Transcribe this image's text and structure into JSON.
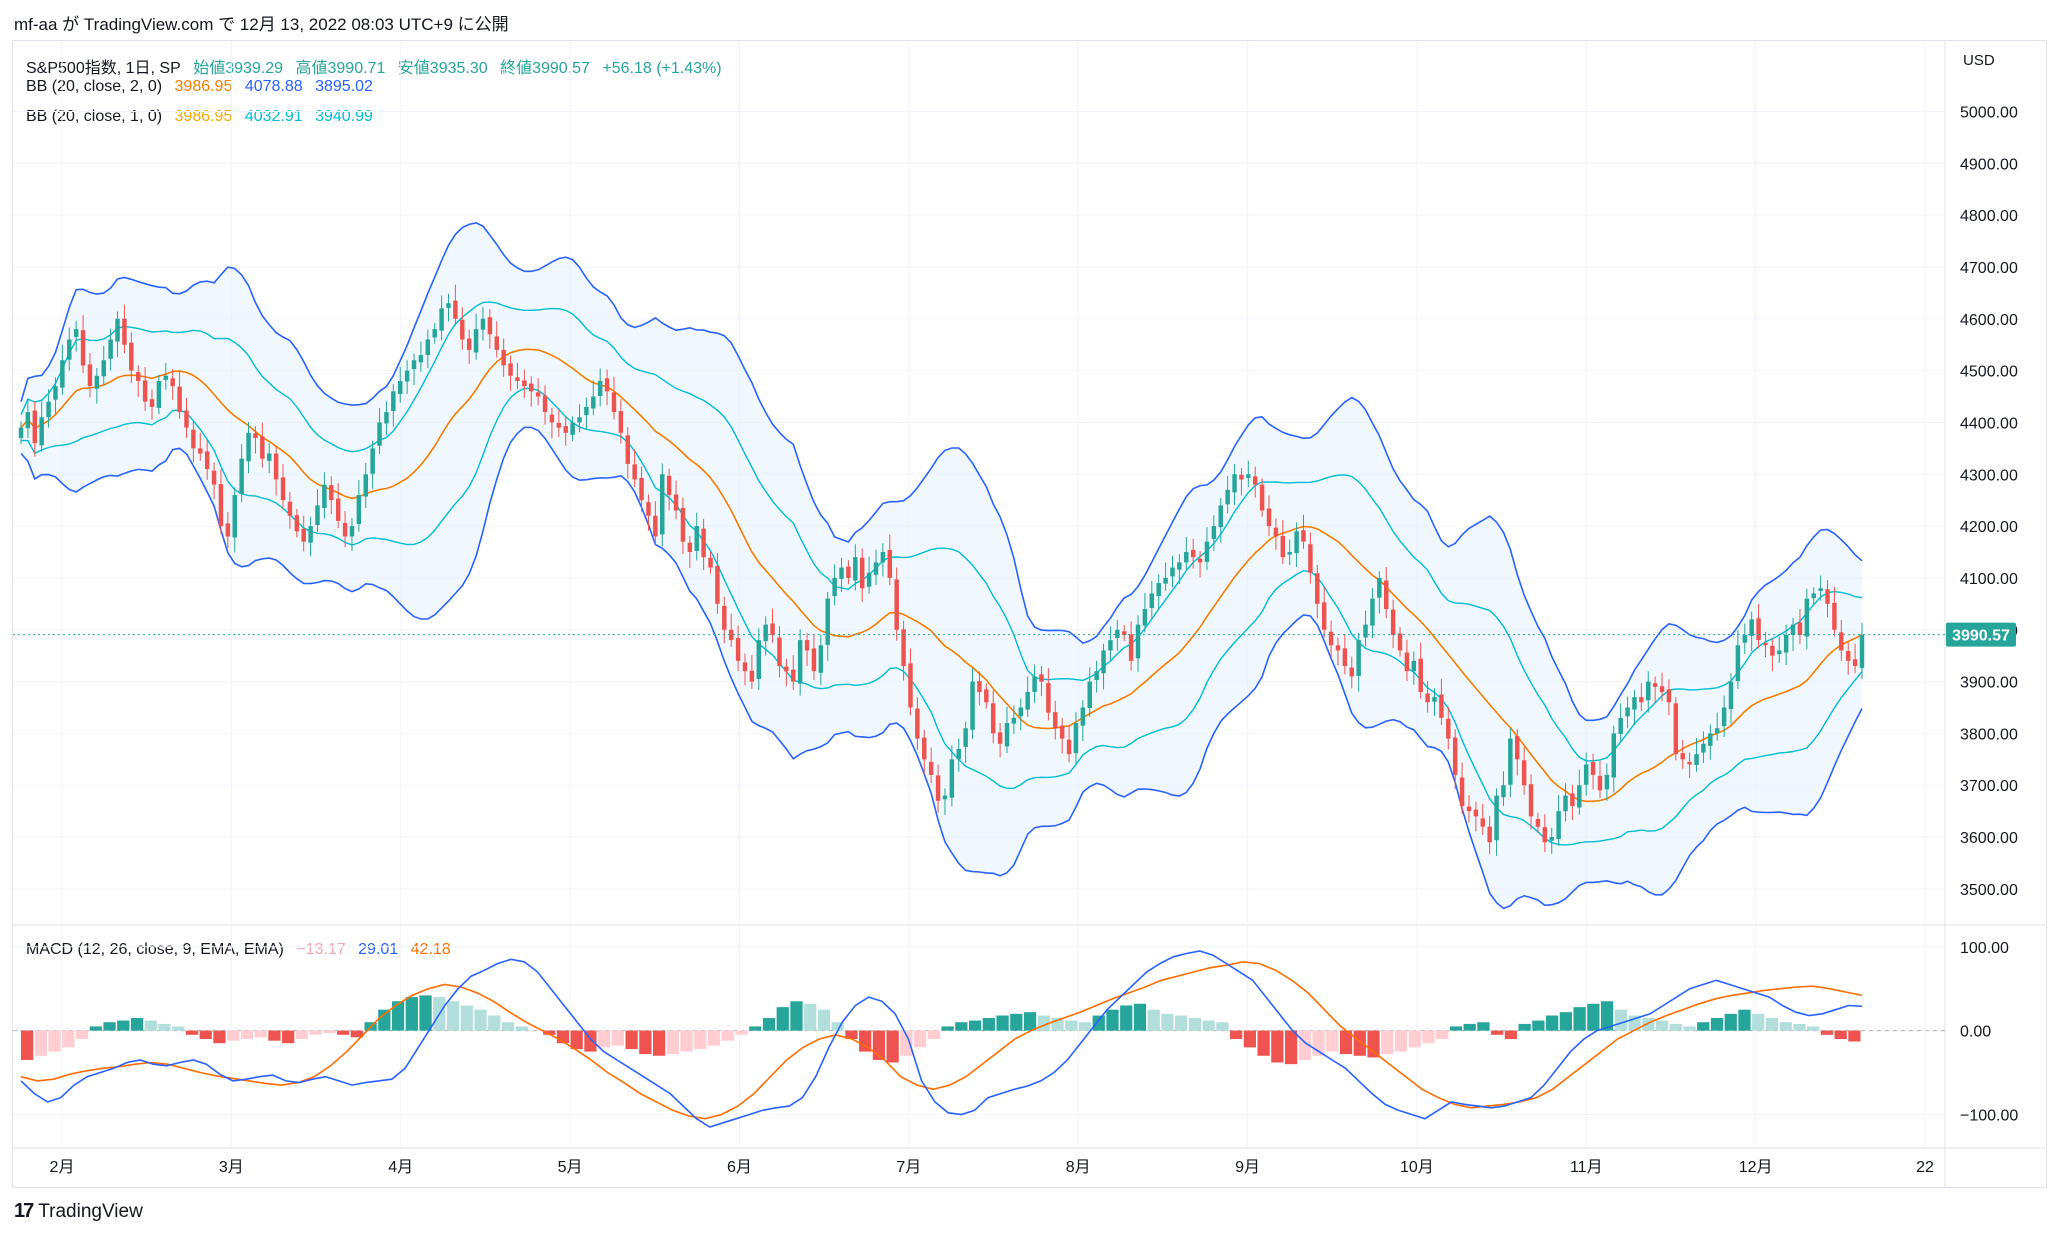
{
  "header": {
    "author": "mf-aa",
    "text": "mf-aa が TradingView.com で 12月 13, 2022 08:03 UTC+9 に公開"
  },
  "legend": {
    "symbol": "S&P500指数, 1日, SP",
    "open": "始値3939.29",
    "high": "高値3990.71",
    "low": "安値3935.30",
    "close": "終値3990.57",
    "change": "+56.18 (+1.43%)",
    "bb1": {
      "label": "BB (20, close, 2, 0)",
      "basis": "3986.95",
      "upper": "4078.88",
      "lower": "3895.02"
    },
    "bb2": {
      "label": "BB (20, close, 1, 0)",
      "basis": "3986.95",
      "upper": "4032.91",
      "lower": "3940.99"
    },
    "macd": {
      "label": "MACD (12, 26, close, 9, EMA, EMA)",
      "hist": "−13.17",
      "macd": "29.01",
      "signal": "42.18"
    }
  },
  "currency_label": "USD",
  "last_price_label": "3990.57",
  "footer": {
    "logo_text": "TradingView",
    "logo_mark": "17"
  },
  "colors": {
    "up": "#26a69a",
    "down": "#ef5350",
    "bb_outer": "#2962ff",
    "bb_inner": "#00bcd4",
    "bb_basis": "#f57c00",
    "band_fill": "#e3f2fd",
    "macd_line": "#2962ff",
    "signal_line": "#ff6d00",
    "hist_up_strong": "#26a69a",
    "hist_up_weak": "#b2dfdb",
    "hist_down_strong": "#ef5350",
    "hist_down_weak": "#ffcdd2"
  },
  "chart_data": [
    {
      "type": "candlestick",
      "price_axis": {
        "ticks": [
          3500,
          3600,
          3700,
          3800,
          3900,
          4000,
          4100,
          4200,
          4300,
          4400,
          4500,
          4600,
          4700,
          4800,
          4900,
          5000
        ],
        "tick_labels": [
          "3500.00",
          "3600.00",
          "3700.00",
          "3800.00",
          "3900.00",
          "4000.00",
          "4100.00",
          "4200.00",
          "4300.00",
          "4400.00",
          "4500.00",
          "4600.00",
          "4700.00",
          "4800.00",
          "4900.00",
          "5000.00"
        ],
        "ylim": [
          3440,
          5080
        ]
      },
      "time_axis": {
        "labels": [
          "2月",
          "3月",
          "4月",
          "5月",
          "6月",
          "7月",
          "8月",
          "9月",
          "10月",
          "11月",
          "12月",
          "22"
        ]
      },
      "close_path": [
        [
          4390,
          4420,
          4360,
          4410,
          4440,
          4470,
          4520,
          4560,
          4580,
          4510,
          4470,
          4490,
          4520,
          4560,
          4600,
          4550,
          4500,
          4480,
          4440,
          4430,
          4480,
          4490,
          4470,
          4420,
          4390,
          4350,
          4340,
          4310,
          4280,
          4200,
          4180,
          4260,
          4330,
          4380,
          4370,
          4330,
          4340,
          4290,
          4250,
          4220,
          4190,
          4170,
          4200,
          4240,
          4280,
          4250,
          4210,
          4180,
          4200,
          4260,
          4300,
          4350,
          4400,
          4420,
          4460,
          4480,
          4500,
          4520,
          4530,
          4560,
          4580,
          4620,
          4630,
          4600,
          4560,
          4540,
          4580,
          4600,
          4570,
          4540,
          4510,
          4490,
          4480,
          4470,
          4460,
          4450,
          4420,
          4400,
          4390,
          4380,
          4400,
          4410,
          4430,
          4450,
          4480,
          4460,
          4420,
          4380,
          4320,
          4290,
          4250,
          4220,
          4180,
          4300,
          4260,
          4230,
          4170,
          4150,
          4200,
          4140,
          4120,
          4050,
          4000,
          3980,
          3940,
          3920,
          3900,
          3980,
          4010,
          3990,
          3930,
          3920,
          3900,
          3980,
          3960,
          3920,
          3970,
          4060,
          4100,
          4120,
          4100,
          4140,
          4080,
          4110,
          4130,
          4150,
          4100,
          4000,
          3930,
          3850,
          3790,
          3750,
          3720,
          3670,
          3680,
          3750,
          3770,
          3810,
          3900,
          3880,
          3860,
          3800,
          3780,
          3820,
          3830,
          3850,
          3880,
          3910,
          3900,
          3840,
          3810,
          3790,
          3760,
          3820,
          3850,
          3900,
          3920,
          3960,
          3980,
          4000,
          3990,
          3940,
          4010,
          4040,
          4070,
          4090,
          4100,
          4120,
          4130,
          4150,
          4140,
          4130,
          4170,
          4200,
          4240,
          4270,
          4300,
          4290,
          4300,
          4280,
          4230,
          4200,
          4180,
          4140,
          4150,
          4190,
          4170,
          4110,
          4050,
          4000,
          3970,
          3960,
          3930,
          3910,
          3980,
          4010,
          4060,
          4100,
          4040,
          3990,
          3960,
          3920,
          3940,
          3880,
          3860,
          3870,
          3830,
          3790,
          3720,
          3660,
          3650,
          3640,
          3620,
          3590,
          3680,
          3700,
          3790,
          3750,
          3700,
          3640,
          3620,
          3590,
          3600,
          3650,
          3680,
          3660,
          3700,
          3740,
          3720,
          3690,
          3720,
          3800,
          3830,
          3850,
          3870,
          3860,
          3900,
          3890,
          3880,
          3860,
          3760,
          3750,
          3740,
          3760,
          3780,
          3800,
          3810,
          3850,
          3900,
          3970,
          3990,
          4020,
          3980,
          3970,
          3950,
          3960,
          3990,
          4010,
          3990,
          4060,
          4070,
          4080,
          4050,
          4000,
          3960,
          3940,
          3930,
          3990
        ]
      ],
      "last_price": 3990.57
    },
    {
      "type": "macd",
      "yaxis": {
        "ticks": [
          100,
          0,
          -100
        ],
        "tick_labels": [
          "100.00",
          "0.00",
          "−100.00"
        ],
        "ylim": [
          -140,
          120
        ]
      },
      "macd_path": [
        [
          -60,
          -75,
          -85,
          -80,
          -65,
          -55,
          -50,
          -45,
          -38,
          -35,
          -40,
          -42,
          -38,
          -35,
          -40,
          -52,
          -60,
          -58,
          -55,
          -53,
          -60,
          -62,
          -58,
          -55,
          -60,
          -65,
          -62,
          -60,
          -58,
          -45,
          -20,
          5,
          30,
          50,
          65,
          72,
          80,
          85,
          82,
          70,
          50,
          30,
          10,
          -10,
          -25,
          -35,
          -45,
          -55,
          -65,
          -75,
          -90,
          -105,
          -115,
          -110,
          -105,
          -100,
          -95,
          -92,
          -90,
          -80,
          -55,
          -20,
          10,
          30,
          40,
          35,
          20,
          -10,
          -60,
          -85,
          -98,
          -100,
          -95,
          -80,
          -75,
          -70,
          -66,
          -60,
          -50,
          -35,
          -15,
          5,
          25,
          40,
          55,
          70,
          80,
          88,
          92,
          95,
          90,
          80,
          70,
          60,
          40,
          20,
          0,
          -15,
          -25,
          -35,
          -45,
          -60,
          -75,
          -88,
          -95,
          -100,
          -105,
          -95,
          -85,
          -88,
          -90,
          -92,
          -90,
          -85,
          -80,
          -65,
          -45,
          -25,
          -10,
          0,
          5,
          10,
          15,
          20,
          30,
          40,
          50,
          55,
          60,
          55,
          50,
          45,
          40,
          30,
          22,
          18,
          20,
          25,
          30,
          29
        ]
      ],
      "signal_path": [
        [
          -55,
          -60,
          -58,
          -52,
          -48,
          -45,
          -43,
          -40,
          -38,
          -40,
          -45,
          -50,
          -54,
          -57,
          -60,
          -63,
          -65,
          -62,
          -55,
          -42,
          -25,
          -5,
          15,
          30,
          42,
          50,
          55,
          52,
          45,
          35,
          22,
          10,
          0,
          -10,
          -22,
          -35,
          -50,
          -62,
          -75,
          -85,
          -95,
          -102,
          -105,
          -100,
          -90,
          -75,
          -55,
          -35,
          -20,
          -10,
          -5,
          -10,
          -20,
          -35,
          -55,
          -65,
          -70,
          -65,
          -55,
          -40,
          -25,
          -10,
          0,
          8,
          15,
          22,
          30,
          38,
          45,
          52,
          60,
          65,
          70,
          75,
          78,
          82,
          80,
          72,
          60,
          45,
          25,
          5,
          -10,
          -25,
          -40,
          -55,
          -70,
          -80,
          -88,
          -92,
          -90,
          -88,
          -85,
          -80,
          -70,
          -55,
          -40,
          -25,
          -10,
          0,
          10,
          18,
          25,
          32,
          38,
          42,
          45,
          48,
          50,
          52,
          53,
          50,
          46,
          42
        ]
      ],
      "histogram_path": [
        [
          -35,
          -30,
          -25,
          -20,
          -10,
          5,
          10,
          12,
          15,
          12,
          8,
          5,
          -5,
          -10,
          -15,
          -12,
          -10,
          -8,
          -12,
          -15,
          -10,
          -5,
          -3,
          -5,
          -8,
          10,
          25,
          35,
          40,
          42,
          40,
          35,
          30,
          25,
          18,
          10,
          5,
          0,
          -5,
          -15,
          -22,
          -25,
          -20,
          -18,
          -22,
          -28,
          -30,
          -28,
          -25,
          -22,
          -18,
          -12,
          -5,
          5,
          15,
          28,
          35,
          32,
          25,
          10,
          -10,
          -25,
          -35,
          -38,
          -30,
          -20,
          -10,
          5,
          10,
          12,
          15,
          18,
          20,
          22,
          18,
          15,
          12,
          10,
          18,
          25,
          30,
          32,
          25,
          20,
          18,
          15,
          12,
          10,
          -10,
          -20,
          -30,
          -38,
          -40,
          -35,
          -30,
          -25,
          -28,
          -30,
          -32,
          -28,
          -25,
          -20,
          -15,
          -10,
          5,
          8,
          10,
          -5,
          -10,
          8,
          12,
          18,
          22,
          28,
          32,
          35,
          25,
          18,
          15,
          12,
          8,
          5,
          10,
          15,
          20,
          25,
          20,
          15,
          10,
          8,
          5,
          -5,
          -10,
          -13
        ]
      ]
    }
  ]
}
